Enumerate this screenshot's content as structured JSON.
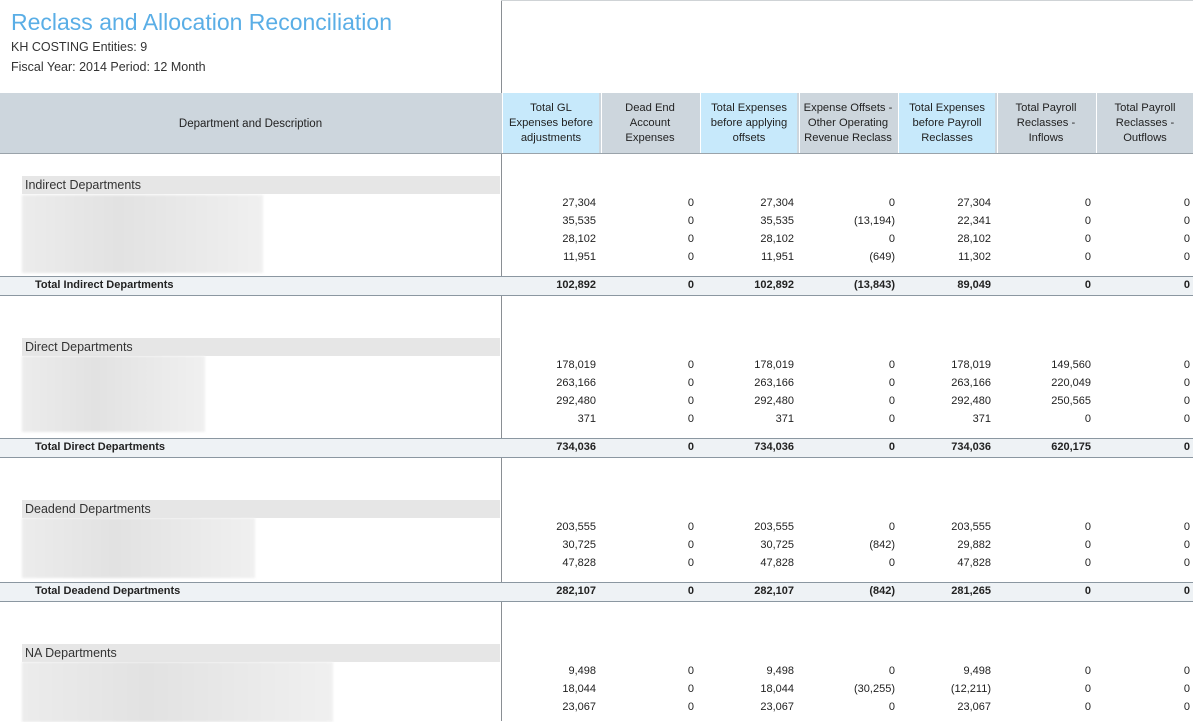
{
  "report": {
    "title": "Reclass and Allocation Reconciliation",
    "entities_line": "KH COSTING Entities: 9",
    "period_line": "Fiscal Year: 2014   Period: 12 Month"
  },
  "header": {
    "desc_label": "Department and Description",
    "columns": [
      {
        "label": "Total GL Expenses before adjustments",
        "highlight": true
      },
      {
        "label": "Dead End Account Expenses",
        "highlight": false
      },
      {
        "label": "Total Expenses before applying offsets",
        "highlight": true
      },
      {
        "label": "Expense Offsets - Other Operating Revenue Reclass",
        "highlight": false
      },
      {
        "label": "Total Expenses before Payroll Reclasses",
        "highlight": true
      },
      {
        "label": "Total Payroll Reclasses - Inflows",
        "highlight": false
      },
      {
        "label": "Total Payroll Reclasses - Outflows",
        "highlight": false
      }
    ]
  },
  "sections": [
    {
      "label": "Indirect Departments",
      "rows": [
        [
          "27,304",
          "0",
          "27,304",
          "0",
          "27,304",
          "0",
          "0"
        ],
        [
          "35,535",
          "0",
          "35,535",
          "(13,194)",
          "22,341",
          "0",
          "0"
        ],
        [
          "28,102",
          "0",
          "28,102",
          "0",
          "28,102",
          "0",
          "0"
        ],
        [
          "11,951",
          "0",
          "11,951",
          "(649)",
          "11,302",
          "0",
          "0"
        ]
      ],
      "total_label": "Total Indirect Departments",
      "total": [
        "102,892",
        "0",
        "102,892",
        "(13,843)",
        "89,049",
        "0",
        "0"
      ]
    },
    {
      "label": "Direct Departments",
      "rows": [
        [
          "178,019",
          "0",
          "178,019",
          "0",
          "178,019",
          "149,560",
          "0"
        ],
        [
          "263,166",
          "0",
          "263,166",
          "0",
          "263,166",
          "220,049",
          "0"
        ],
        [
          "292,480",
          "0",
          "292,480",
          "0",
          "292,480",
          "250,565",
          "0"
        ],
        [
          "371",
          "0",
          "371",
          "0",
          "371",
          "0",
          "0"
        ]
      ],
      "total_label": "Total Direct Departments",
      "total": [
        "734,036",
        "0",
        "734,036",
        "0",
        "734,036",
        "620,175",
        "0"
      ]
    },
    {
      "label": "Deadend Departments",
      "rows": [
        [
          "203,555",
          "0",
          "203,555",
          "0",
          "203,555",
          "0",
          "0"
        ],
        [
          "30,725",
          "0",
          "30,725",
          "(842)",
          "29,882",
          "0",
          "0"
        ],
        [
          "47,828",
          "0",
          "47,828",
          "0",
          "47,828",
          "0",
          "0"
        ]
      ],
      "total_label": "Total Deadend Departments",
      "total": [
        "282,107",
        "0",
        "282,107",
        "(842)",
        "281,265",
        "0",
        "0"
      ]
    },
    {
      "label": "NA Departments",
      "rows": [
        [
          "9,498",
          "0",
          "9,498",
          "0",
          "9,498",
          "0",
          "0"
        ],
        [
          "18,044",
          "0",
          "18,044",
          "(30,255)",
          "(12,211)",
          "0",
          "0"
        ],
        [
          "23,067",
          "0",
          "23,067",
          "0",
          "23,067",
          "0",
          "0"
        ]
      ]
    }
  ]
}
